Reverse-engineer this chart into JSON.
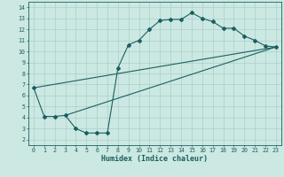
{
  "xlabel": "Humidex (Indice chaleur)",
  "xlim": [
    -0.5,
    23.5
  ],
  "ylim": [
    1.5,
    14.5
  ],
  "yticks": [
    2,
    3,
    4,
    5,
    6,
    7,
    8,
    9,
    10,
    11,
    12,
    13,
    14
  ],
  "xticks": [
    0,
    1,
    2,
    3,
    4,
    5,
    6,
    7,
    8,
    9,
    10,
    11,
    12,
    13,
    14,
    15,
    16,
    17,
    18,
    19,
    20,
    21,
    22,
    23
  ],
  "bg_color": "#cce8e2",
  "grid_color": "#aacfca",
  "line_color": "#1a6060",
  "marker": "D",
  "marker_size": 2.0,
  "lw": 0.8,
  "curve1_x": [
    0,
    1,
    2,
    3,
    4,
    5,
    6,
    7,
    8,
    9,
    10,
    11,
    12,
    13,
    14,
    15,
    16,
    17,
    18,
    19,
    20,
    21,
    22,
    23
  ],
  "curve1_y": [
    6.7,
    4.1,
    4.1,
    4.2,
    3.0,
    2.6,
    2.6,
    2.6,
    8.5,
    10.6,
    11.0,
    12.0,
    12.8,
    12.9,
    12.9,
    13.5,
    13.0,
    12.7,
    12.1,
    12.1,
    11.4,
    11.0,
    10.5,
    10.4
  ],
  "curve2_x": [
    0,
    23
  ],
  "curve2_y": [
    6.7,
    10.4
  ],
  "curve3_x": [
    3,
    23
  ],
  "curve3_y": [
    4.2,
    10.4
  ],
  "xlabel_fontsize": 6.0,
  "tick_fontsize": 4.8
}
